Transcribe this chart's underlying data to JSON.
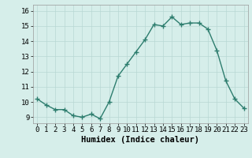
{
  "x": [
    0,
    1,
    2,
    3,
    4,
    5,
    6,
    7,
    8,
    9,
    10,
    11,
    12,
    13,
    14,
    15,
    16,
    17,
    18,
    19,
    20,
    21,
    22,
    23
  ],
  "y": [
    10.2,
    9.8,
    9.5,
    9.5,
    9.1,
    9.0,
    9.2,
    8.9,
    10.0,
    11.7,
    12.5,
    13.3,
    14.1,
    15.1,
    15.0,
    15.6,
    15.1,
    15.2,
    15.2,
    14.8,
    13.4,
    11.4,
    10.2,
    9.6
  ],
  "line_color": "#2d7d6e",
  "marker": "+",
  "marker_color": "#2d7d6e",
  "bg_color": "#d6eeea",
  "grid_color": "#b8d8d4",
  "xlabel": "Humidex (Indice chaleur)",
  "ylabel_ticks": [
    9,
    10,
    11,
    12,
    13,
    14,
    15,
    16
  ],
  "xlim": [
    -0.5,
    23.5
  ],
  "ylim": [
    8.6,
    16.4
  ],
  "xlabel_fontsize": 7.5,
  "tick_fontsize": 6.5,
  "linewidth": 1.0,
  "markersize": 4.0
}
